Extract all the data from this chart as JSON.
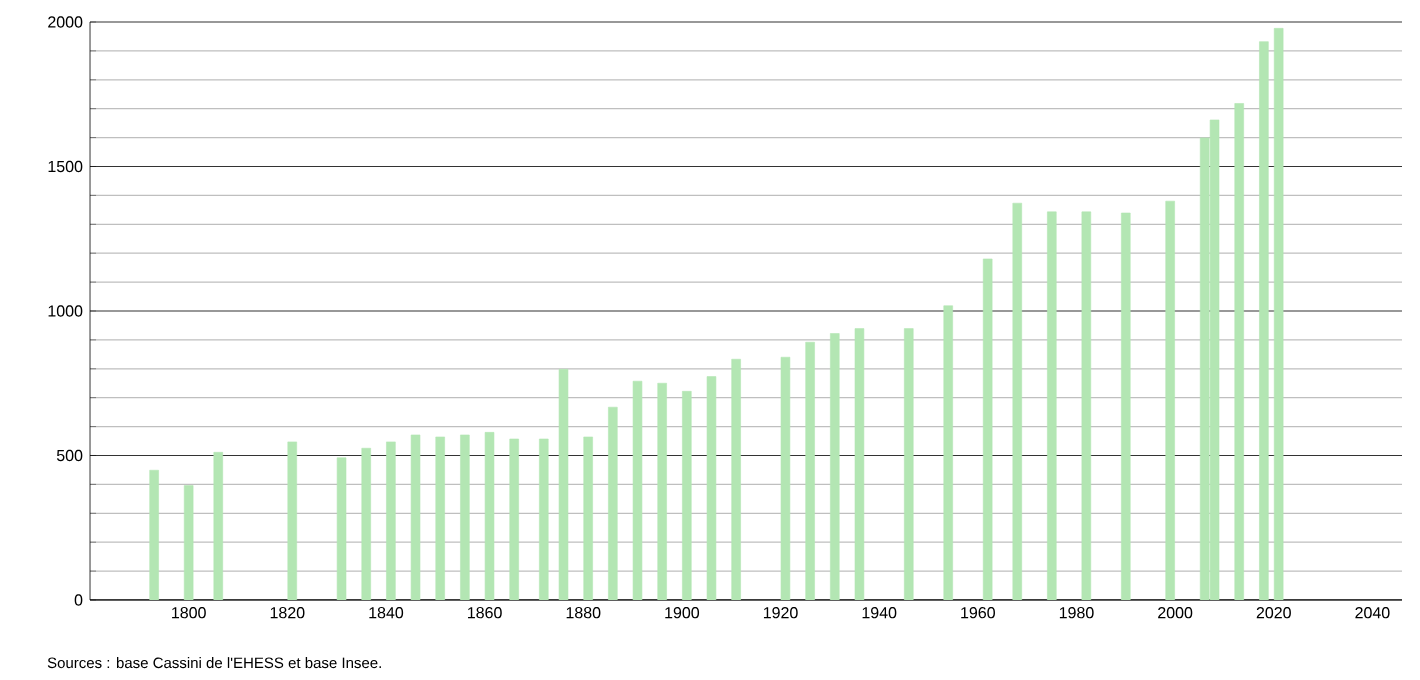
{
  "chart_data": {
    "type": "bar",
    "x": [
      1793,
      1800,
      1806,
      1821,
      1831,
      1836,
      1841,
      1846,
      1851,
      1856,
      1861,
      1866,
      1872,
      1876,
      1881,
      1886,
      1891,
      1896,
      1901,
      1906,
      1911,
      1921,
      1926,
      1931,
      1936,
      1946,
      1954,
      1962,
      1968,
      1975,
      1982,
      1990,
      1999,
      2006,
      2008,
      2013,
      2018,
      2021
    ],
    "values": [
      449,
      396,
      511,
      547,
      492,
      525,
      547,
      571,
      564,
      571,
      580,
      557,
      557,
      798,
      564,
      667,
      757,
      750,
      722,
      773,
      833,
      840,
      892,
      922,
      939,
      939,
      1018,
      1180,
      1373,
      1343,
      1343,
      1339,
      1380,
      1599,
      1661,
      1718,
      1932,
      1978
    ],
    "color": "#b3e6b3",
    "xlim": [
      1780,
      2046
    ],
    "ylim": [
      0,
      2000
    ],
    "xticks": [
      1800,
      1820,
      1840,
      1860,
      1880,
      1900,
      1920,
      1940,
      1960,
      1980,
      2000,
      2020,
      2040
    ],
    "yticks": [
      0,
      {
        "value": 100,
        "label": null
      },
      {
        "value": 200,
        "label": null
      },
      {
        "value": 300,
        "label": null
      },
      {
        "value": 400,
        "label": null
      },
      500,
      {
        "value": 600,
        "label": null
      },
      {
        "value": 700,
        "label": null
      },
      {
        "value": 800,
        "label": null
      },
      {
        "value": 900,
        "label": null
      },
      1000,
      {
        "value": 1100,
        "label": null
      },
      {
        "value": 1200,
        "label": null
      },
      {
        "value": 1300,
        "label": null
      },
      {
        "value": 1400,
        "label": null
      },
      1500,
      {
        "value": 1600,
        "label": null
      },
      {
        "value": 1700,
        "label": null
      },
      {
        "value": 1800,
        "label": null
      },
      {
        "value": 1900,
        "label": null
      },
      2000
    ],
    "grid": "y",
    "annotations": [
      "Sources : base Cassini de l'EHESS et base Insee."
    ]
  }
}
